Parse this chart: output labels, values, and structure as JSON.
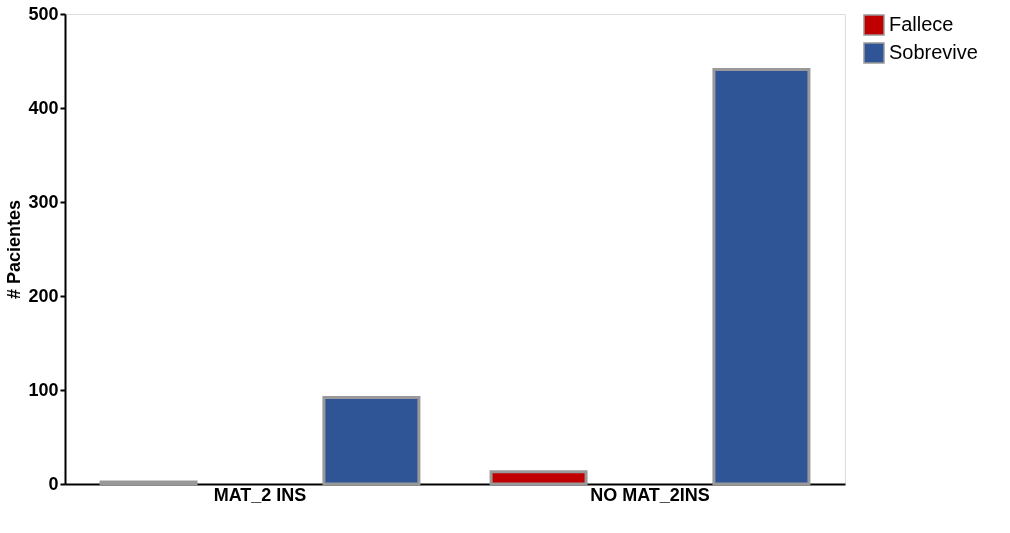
{
  "chart_data": {
    "type": "bar",
    "ylabel": "# Pacientes",
    "categories": [
      "MAT_2 INS",
      "NO MAT_2INS"
    ],
    "series": [
      {
        "name": "Fallece",
        "color": "#c00000",
        "values": [
          2,
          13
        ]
      },
      {
        "name": "Sobrevive",
        "color": "#2f5597",
        "values": [
          92,
          441
        ]
      }
    ],
    "ylim": [
      0,
      500
    ],
    "yticks": [
      0,
      100,
      200,
      300,
      400,
      500
    ],
    "grid": false,
    "legend": "right"
  }
}
